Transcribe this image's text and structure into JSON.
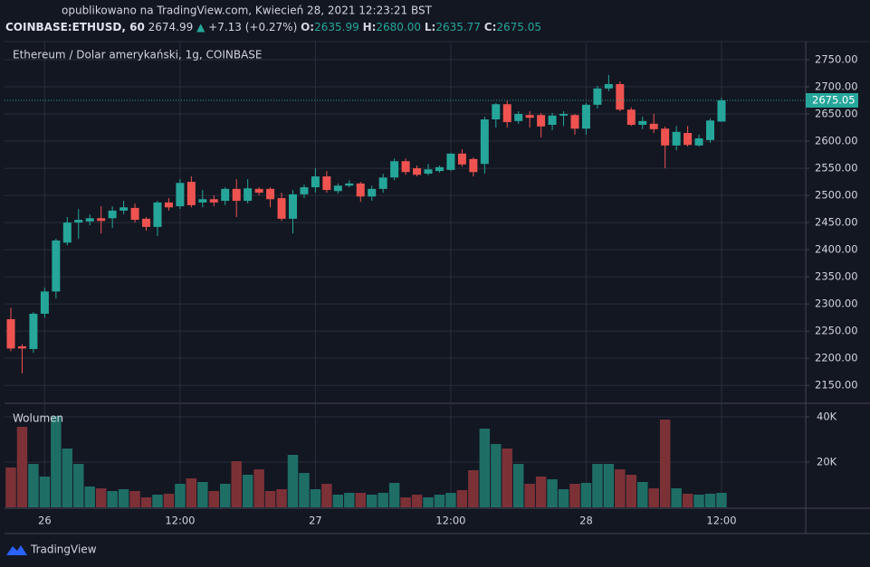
{
  "header": {
    "published": "opublikowano na TradingView.com, Kwiecień 28, 2021 12:23:21 BST",
    "symbol": "COINBASE:ETHUSD, 60",
    "last": "2674.99",
    "arrow": "▲",
    "change": "+7.13 (+0.27%)",
    "ohlc": [
      {
        "key": "O:",
        "value": "2635.99"
      },
      {
        "key": "H:",
        "value": "2680.00"
      },
      {
        "key": "L:",
        "value": "2635.77"
      },
      {
        "key": "C:",
        "value": "2675.05"
      }
    ]
  },
  "footer": "TradingView",
  "chart_data": {
    "type": "candlestick",
    "title": "Ethereum / Dolar amerykański, 1g, COINBASE",
    "up_color": "#26a69a",
    "down_color": "#ef5350",
    "grid": true,
    "categories": [
      null,
      null,
      null,
      "26",
      null,
      null,
      null,
      null,
      null,
      null,
      null,
      null,
      null,
      null,
      null,
      "12:00",
      null,
      null,
      null,
      null,
      null,
      null,
      null,
      null,
      null,
      null,
      null,
      "27",
      null,
      null,
      null,
      null,
      null,
      null,
      null,
      null,
      null,
      null,
      null,
      "12:00",
      null,
      null,
      null,
      null,
      null,
      null,
      null,
      null,
      null,
      null,
      null,
      "28",
      null,
      null,
      null,
      null,
      null,
      null,
      null,
      null,
      null,
      null,
      null,
      "12:00"
    ],
    "open": [
      2272,
      2222,
      2217,
      2282,
      2323,
      2413,
      2450,
      2452,
      2458,
      2458,
      2472,
      2477,
      2457,
      2442,
      2487,
      2480,
      2525,
      2487,
      2493,
      2490,
      2512,
      2490,
      2512,
      2512,
      2495,
      2457,
      2502,
      2515,
      2535,
      2508,
      2518,
      2522,
      2498,
      2512,
      2533,
      2563,
      2550,
      2540,
      2545,
      2547,
      2577,
      2567,
      2558,
      2640,
      2668,
      2637,
      2648,
      2648,
      2630,
      2647,
      2648,
      2623,
      2667,
      2697,
      2705,
      2658,
      2630,
      2632,
      2623,
      2592,
      2615,
      2592,
      2602,
      2635.99
    ],
    "high": [
      2293,
      2226,
      2285,
      2330,
      2420,
      2460,
      2475,
      2465,
      2480,
      2480,
      2490,
      2485,
      2460,
      2490,
      2495,
      2530,
      2535,
      2510,
      2500,
      2515,
      2530,
      2530,
      2515,
      2515,
      2505,
      2510,
      2520,
      2550,
      2545,
      2522,
      2528,
      2525,
      2518,
      2540,
      2568,
      2568,
      2555,
      2558,
      2555,
      2578,
      2585,
      2570,
      2645,
      2670,
      2675,
      2655,
      2655,
      2652,
      2652,
      2655,
      2650,
      2670,
      2702,
      2722,
      2710,
      2662,
      2645,
      2650,
      2627,
      2628,
      2628,
      2612,
      2642,
      2680
    ],
    "low": [
      2213,
      2172,
      2210,
      2275,
      2310,
      2408,
      2420,
      2445,
      2430,
      2440,
      2465,
      2450,
      2435,
      2425,
      2472,
      2475,
      2478,
      2478,
      2480,
      2482,
      2460,
      2485,
      2500,
      2478,
      2453,
      2430,
      2495,
      2505,
      2505,
      2503,
      2515,
      2488,
      2490,
      2505,
      2528,
      2538,
      2535,
      2537,
      2542,
      2545,
      2553,
      2535,
      2540,
      2625,
      2625,
      2632,
      2625,
      2607,
      2620,
      2628,
      2612,
      2612,
      2660,
      2692,
      2655,
      2628,
      2622,
      2615,
      2550,
      2583,
      2590,
      2590,
      2597,
      2635.77
    ],
    "close": [
      2218,
      2218,
      2282,
      2323,
      2417,
      2450,
      2455,
      2458,
      2453,
      2472,
      2478,
      2455,
      2442,
      2487,
      2478,
      2523,
      2482,
      2493,
      2487,
      2512,
      2490,
      2513,
      2505,
      2493,
      2457,
      2502,
      2515,
      2535,
      2510,
      2518,
      2522,
      2498,
      2512,
      2533,
      2563,
      2543,
      2538,
      2548,
      2552,
      2577,
      2557,
      2543,
      2640,
      2668,
      2635,
      2650,
      2643,
      2627,
      2647,
      2650,
      2623,
      2667,
      2697,
      2705,
      2658,
      2630,
      2637,
      2622,
      2592,
      2617,
      2593,
      2605,
      2638,
      2675.05
    ],
    "ylim": [
      2117,
      2780
    ],
    "yticks": [
      {
        "value": 2150,
        "label": "2150.00"
      },
      {
        "value": 2200,
        "label": "2200.00"
      },
      {
        "value": 2250,
        "label": "2250.00"
      },
      {
        "value": 2300,
        "label": "2300.00"
      },
      {
        "value": 2350,
        "label": "2350.00"
      },
      {
        "value": 2400,
        "label": "2400.00"
      },
      {
        "value": 2450,
        "label": "2450.00"
      },
      {
        "value": 2500,
        "label": "2500.00"
      },
      {
        "value": 2550,
        "label": "2550.00"
      },
      {
        "value": 2600,
        "label": "2600.00"
      },
      {
        "value": 2650,
        "label": "2650.00"
      },
      {
        "value": 2700,
        "label": "2700.00"
      },
      {
        "value": 2750,
        "label": "2750.00"
      }
    ],
    "volume": {
      "name": "Wolumen",
      "up_color": "#1e6e66",
      "down_color": "#7c3137",
      "values": [
        17600,
        35600,
        19200,
        13600,
        40400,
        26000,
        19200,
        9200,
        8400,
        7200,
        8000,
        7200,
        4400,
        5600,
        6000,
        10400,
        12800,
        11200,
        7200,
        10400,
        20400,
        14400,
        16800,
        7200,
        8000,
        23200,
        15200,
        8000,
        10400,
        5600,
        6400,
        6400,
        5600,
        6400,
        10800,
        4400,
        5600,
        4400,
        5600,
        6400,
        7600,
        16400,
        34800,
        28000,
        26000,
        19200,
        10400,
        13600,
        12400,
        8000,
        10400,
        10800,
        19200,
        19200,
        16800,
        14400,
        11200,
        8400,
        38800,
        8400,
        6000,
        5600,
        6000,
        6400
      ],
      "ylim": [
        0,
        45600
      ],
      "yticks": [
        {
          "value": 20000,
          "label": "20K"
        },
        {
          "value": 40000,
          "label": "40K"
        }
      ]
    }
  }
}
